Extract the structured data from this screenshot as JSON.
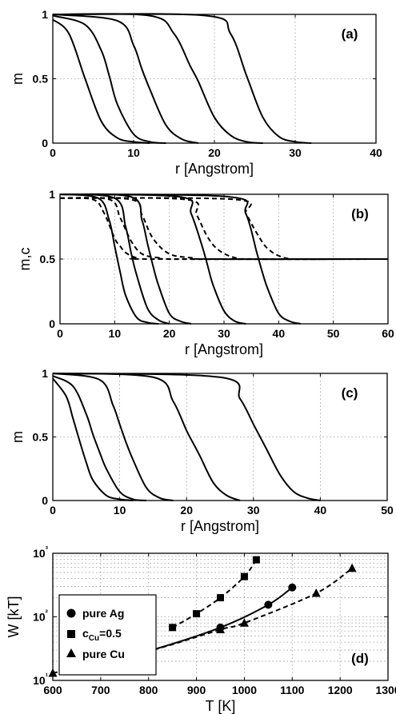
{
  "chart_data": [
    {
      "type": "line",
      "panel_label": "(a)",
      "xlabel": "r [Angstrom]",
      "ylabel": "m",
      "xlim": [
        0,
        40
      ],
      "ylim": [
        0,
        1
      ],
      "xticks": [
        0,
        10,
        20,
        30,
        40
      ],
      "yticks": [
        0,
        0.5,
        1
      ],
      "ytick_labels": [
        "0",
        "0.5",
        "1"
      ],
      "grid": true,
      "series": [
        {
          "style": "solid",
          "values": [
            [
              0,
              0.96
            ],
            [
              2,
              0.85
            ],
            [
              4,
              0.5
            ],
            [
              6,
              0.17
            ],
            [
              8,
              0.04
            ],
            [
              10,
              0.01
            ],
            [
              12,
              0
            ]
          ]
        },
        {
          "style": "solid",
          "values": [
            [
              0,
              0.99
            ],
            [
              4,
              0.92
            ],
            [
              6,
              0.72
            ],
            [
              7,
              0.52
            ],
            [
              8,
              0.3
            ],
            [
              10,
              0.07
            ],
            [
              12,
              0.01
            ],
            [
              14,
              0
            ]
          ]
        },
        {
          "style": "solid",
          "values": [
            [
              0,
              1
            ],
            [
              8,
              0.95
            ],
            [
              10,
              0.76
            ],
            [
              11,
              0.58
            ],
            [
              12,
              0.42
            ],
            [
              14,
              0.14
            ],
            [
              16,
              0.03
            ],
            [
              18,
              0
            ]
          ]
        },
        {
          "style": "solid",
          "values": [
            [
              0,
              1
            ],
            [
              12,
              0.99
            ],
            [
              15,
              0.85
            ],
            [
              17,
              0.6
            ],
            [
              18,
              0.48
            ],
            [
              20,
              0.2
            ],
            [
              22,
              0.06
            ],
            [
              24,
              0.01
            ],
            [
              26,
              0
            ]
          ]
        },
        {
          "style": "solid",
          "values": [
            [
              0,
              1
            ],
            [
              19,
              0.99
            ],
            [
              22,
              0.85
            ],
            [
              24,
              0.52
            ],
            [
              26,
              0.2
            ],
            [
              28,
              0.05
            ],
            [
              30,
              0.01
            ],
            [
              32,
              0
            ]
          ]
        }
      ]
    },
    {
      "type": "line",
      "panel_label": "(b)",
      "xlabel": "r [Angstrom]",
      "ylabel": "m,c",
      "xlim": [
        0,
        60
      ],
      "ylim": [
        0,
        1
      ],
      "xticks": [
        0,
        10,
        20,
        30,
        40,
        50,
        60
      ],
      "yticks": [
        0,
        0.5,
        1
      ],
      "ytick_labels": [
        "0",
        "0.5",
        "1"
      ],
      "grid": true,
      "series": [
        {
          "style": "solid",
          "values": [
            [
              0,
              1
            ],
            [
              7,
              0.97
            ],
            [
              9,
              0.8
            ],
            [
              10,
              0.6
            ],
            [
              11,
              0.4
            ],
            [
              12,
              0.22
            ],
            [
              14,
              0.05
            ],
            [
              16,
              0.01
            ],
            [
              18,
              0
            ]
          ]
        },
        {
          "style": "solid",
          "values": [
            [
              0,
              1
            ],
            [
              10,
              0.97
            ],
            [
              12,
              0.75
            ],
            [
              13,
              0.55
            ],
            [
              14,
              0.38
            ],
            [
              16,
              0.12
            ],
            [
              18,
              0.03
            ],
            [
              20,
              0
            ]
          ]
        },
        {
          "style": "solid",
          "values": [
            [
              0,
              1
            ],
            [
              13,
              0.98
            ],
            [
              15,
              0.8
            ],
            [
              16,
              0.62
            ],
            [
              17,
              0.45
            ],
            [
              18,
              0.3
            ],
            [
              20,
              0.08
            ],
            [
              22,
              0.02
            ],
            [
              24,
              0
            ]
          ]
        },
        {
          "style": "solid",
          "values": [
            [
              0,
              1
            ],
            [
              22,
              0.98
            ],
            [
              24,
              0.85
            ],
            [
              26,
              0.6
            ],
            [
              27,
              0.45
            ],
            [
              28,
              0.3
            ],
            [
              30,
              0.1
            ],
            [
              32,
              0.02
            ],
            [
              34,
              0
            ]
          ]
        },
        {
          "style": "solid",
          "values": [
            [
              0,
              1
            ],
            [
              31,
              0.98
            ],
            [
              34,
              0.85
            ],
            [
              36,
              0.55
            ],
            [
              37,
              0.4
            ],
            [
              38,
              0.27
            ],
            [
              40,
              0.08
            ],
            [
              42,
              0.02
            ],
            [
              44,
              0
            ]
          ]
        },
        {
          "style": "dashed",
          "values": [
            [
              0,
              0.97
            ],
            [
              6,
              0.96
            ],
            [
              8,
              0.86
            ],
            [
              10,
              0.66
            ],
            [
              11,
              0.6
            ],
            [
              12,
              0.55
            ],
            [
              14,
              0.51
            ],
            [
              17,
              0.5
            ],
            [
              60,
              0.5
            ]
          ]
        },
        {
          "style": "dashed",
          "values": [
            [
              0,
              0.97
            ],
            [
              9,
              0.96
            ],
            [
              11,
              0.82
            ],
            [
              13,
              0.64
            ],
            [
              15,
              0.54
            ],
            [
              18,
              0.51
            ],
            [
              22,
              0.5
            ],
            [
              60,
              0.5
            ]
          ]
        },
        {
          "style": "dashed",
          "values": [
            [
              0,
              0.97
            ],
            [
              13,
              0.96
            ],
            [
              15,
              0.84
            ],
            [
              17,
              0.66
            ],
            [
              20,
              0.54
            ],
            [
              24,
              0.51
            ],
            [
              28,
              0.5
            ],
            [
              60,
              0.5
            ]
          ]
        },
        {
          "style": "dashed",
          "values": [
            [
              0,
              0.97
            ],
            [
              23,
              0.96
            ],
            [
              25,
              0.84
            ],
            [
              27,
              0.67
            ],
            [
              29,
              0.57
            ],
            [
              32,
              0.51
            ],
            [
              36,
              0.5
            ],
            [
              60,
              0.5
            ]
          ]
        },
        {
          "style": "dashed",
          "values": [
            [
              0,
              0.97
            ],
            [
              32,
              0.96
            ],
            [
              34,
              0.85
            ],
            [
              36,
              0.7
            ],
            [
              38,
              0.58
            ],
            [
              41,
              0.51
            ],
            [
              45,
              0.5
            ],
            [
              60,
              0.5
            ]
          ]
        }
      ]
    },
    {
      "type": "line",
      "panel_label": "(c)",
      "xlabel": "r [Angstrom]",
      "ylabel": "m",
      "xlim": [
        0,
        50
      ],
      "ylim": [
        0,
        1
      ],
      "xticks": [
        0,
        10,
        20,
        30,
        40,
        50
      ],
      "yticks": [
        0,
        0.5,
        1
      ],
      "ytick_labels": [
        "0",
        "0.5",
        "1"
      ],
      "grid": true,
      "series": [
        {
          "style": "solid",
          "values": [
            [
              0,
              0.96
            ],
            [
              2,
              0.82
            ],
            [
              3,
              0.65
            ],
            [
              4,
              0.47
            ],
            [
              5,
              0.3
            ],
            [
              6,
              0.16
            ],
            [
              8,
              0.04
            ],
            [
              10,
              0.01
            ],
            [
              12,
              0
            ]
          ]
        },
        {
          "style": "solid",
          "values": [
            [
              0,
              0.98
            ],
            [
              3,
              0.9
            ],
            [
              5,
              0.68
            ],
            [
              6,
              0.52
            ],
            [
              7,
              0.38
            ],
            [
              8,
              0.25
            ],
            [
              10,
              0.07
            ],
            [
              12,
              0.01
            ],
            [
              14,
              0
            ]
          ]
        },
        {
          "style": "solid",
          "values": [
            [
              0,
              1
            ],
            [
              7,
              0.95
            ],
            [
              9,
              0.75
            ],
            [
              10,
              0.6
            ],
            [
              11,
              0.45
            ],
            [
              12,
              0.32
            ],
            [
              14,
              0.1
            ],
            [
              16,
              0.02
            ],
            [
              18,
              0
            ]
          ]
        },
        {
          "style": "solid",
          "values": [
            [
              0,
              1
            ],
            [
              15,
              0.97
            ],
            [
              18,
              0.78
            ],
            [
              20,
              0.55
            ],
            [
              21,
              0.45
            ],
            [
              22,
              0.35
            ],
            [
              24,
              0.14
            ],
            [
              26,
              0.04
            ],
            [
              28,
              0
            ]
          ]
        },
        {
          "style": "solid",
          "values": [
            [
              0,
              1
            ],
            [
              25,
              0.97
            ],
            [
              28,
              0.8
            ],
            [
              30,
              0.6
            ],
            [
              31,
              0.5
            ],
            [
              32,
              0.4
            ],
            [
              34,
              0.2
            ],
            [
              36,
              0.07
            ],
            [
              38,
              0.02
            ],
            [
              40,
              0
            ]
          ]
        }
      ]
    },
    {
      "type": "line",
      "panel_label": "(d)",
      "xlabel": "T [K]",
      "ylabel": "W [kT]",
      "xlim": [
        600,
        1300
      ],
      "ylim": [
        10,
        1000
      ],
      "yscale": "log",
      "xticks": [
        600,
        700,
        800,
        900,
        1000,
        1100,
        1200,
        1300
      ],
      "ytick_labels": [
        "10¹",
        "10²",
        "10³"
      ],
      "grid": true,
      "legend_position": "top-left",
      "series": [
        {
          "name": "pure Ag",
          "marker": "circle",
          "style": "solid",
          "x": [
            650,
            800,
            950,
            1050,
            1100
          ],
          "y": [
            15,
            29,
            68,
            155,
            290
          ]
        },
        {
          "name": "c_Cu=0.5",
          "marker": "square",
          "style": "dashed",
          "x": [
            850,
            900,
            950,
            1000,
            1025
          ],
          "y": [
            68,
            112,
            200,
            430,
            790
          ]
        },
        {
          "name": "pure Cu",
          "marker": "triangle",
          "style": "dashed",
          "x": [
            600,
            800,
            950,
            1000,
            1150,
            1225
          ],
          "y": [
            13,
            29,
            63,
            80,
            235,
            580
          ]
        }
      ]
    }
  ],
  "legend_d": {
    "c_cu_main": "c",
    "c_cu_sub": "Cu",
    "c_cu_value": "=0.5"
  }
}
